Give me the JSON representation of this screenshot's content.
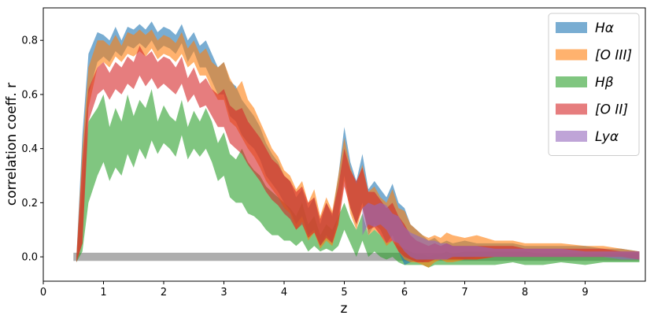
{
  "chart_data": {
    "type": "area",
    "xlabel": "z",
    "ylabel": "correlation coeff. r",
    "xlim": [
      0,
      10
    ],
    "ylim": [
      -0.09,
      0.92
    ],
    "xticks": [
      "0",
      "1",
      "2",
      "3",
      "4",
      "5",
      "6",
      "7",
      "8",
      "9"
    ],
    "yticks": [
      "0.0",
      "0.2",
      "0.4",
      "0.6",
      "0.8"
    ],
    "legend_position": "top-right",
    "grid": false,
    "series": [
      {
        "name": "Hα",
        "color": "#1f77b4",
        "x": [
          0.55,
          0.65,
          0.75,
          0.9,
          1.0,
          1.1,
          1.2,
          1.3,
          1.4,
          1.5,
          1.6,
          1.7,
          1.8,
          1.9,
          2.0,
          2.1,
          2.2,
          2.3,
          2.4,
          2.5,
          2.6,
          2.7,
          2.8,
          2.9,
          3.0,
          3.1,
          3.2,
          3.3,
          3.4,
          3.5,
          3.6,
          3.7,
          3.8,
          3.9,
          4.0,
          4.1,
          4.2,
          4.3,
          4.4,
          4.5,
          4.6,
          4.7,
          4.8,
          4.9,
          5.0,
          5.1,
          5.2,
          5.3,
          5.4,
          5.5,
          5.6,
          5.7,
          5.8,
          5.9,
          6.0,
          6.1,
          6.2,
          6.3,
          6.4,
          6.5,
          6.6,
          6.7,
          6.8,
          7.0,
          7.2,
          7.5,
          7.8,
          8.0,
          8.3,
          8.6,
          9.0,
          9.3,
          9.6,
          9.9
        ],
        "upper": [
          0.0,
          0.45,
          0.75,
          0.83,
          0.82,
          0.8,
          0.85,
          0.8,
          0.85,
          0.84,
          0.86,
          0.84,
          0.87,
          0.83,
          0.85,
          0.84,
          0.82,
          0.86,
          0.8,
          0.83,
          0.78,
          0.8,
          0.75,
          0.7,
          0.72,
          0.65,
          0.63,
          0.58,
          0.55,
          0.52,
          0.48,
          0.42,
          0.38,
          0.35,
          0.3,
          0.28,
          0.22,
          0.25,
          0.18,
          0.22,
          0.12,
          0.2,
          0.15,
          0.3,
          0.48,
          0.35,
          0.28,
          0.38,
          0.25,
          0.28,
          0.25,
          0.22,
          0.27,
          0.2,
          0.18,
          0.12,
          0.1,
          0.08,
          0.06,
          0.07,
          0.05,
          0.06,
          0.05,
          0.06,
          0.05,
          0.05,
          0.05,
          0.04,
          0.04,
          0.04,
          0.04,
          0.03,
          0.03,
          0.02
        ],
        "lower": [
          -0.02,
          0.05,
          0.6,
          0.72,
          0.74,
          0.72,
          0.76,
          0.74,
          0.78,
          0.77,
          0.79,
          0.77,
          0.8,
          0.76,
          0.78,
          0.77,
          0.75,
          0.79,
          0.72,
          0.76,
          0.7,
          0.7,
          0.65,
          0.6,
          0.6,
          0.52,
          0.5,
          0.45,
          0.42,
          0.4,
          0.36,
          0.3,
          0.27,
          0.24,
          0.2,
          0.17,
          0.12,
          0.15,
          0.08,
          0.1,
          0.04,
          0.08,
          0.05,
          0.15,
          0.3,
          0.18,
          0.12,
          0.2,
          0.08,
          0.12,
          0.1,
          0.05,
          0.08,
          0.02,
          -0.03,
          -0.02,
          -0.01,
          -0.02,
          -0.01,
          -0.01,
          0.0,
          -0.01,
          0.0,
          -0.01,
          0.0,
          0.0,
          0.0,
          0.0,
          0.0,
          0.0,
          0.0,
          0.0,
          0.0,
          -0.01
        ]
      },
      {
        "name": "[O III]",
        "color": "#ff7f0e",
        "x": [
          0.55,
          0.65,
          0.75,
          0.9,
          1.0,
          1.1,
          1.2,
          1.3,
          1.4,
          1.5,
          1.6,
          1.7,
          1.8,
          1.9,
          2.0,
          2.1,
          2.2,
          2.3,
          2.4,
          2.5,
          2.6,
          2.7,
          2.8,
          2.9,
          3.0,
          3.1,
          3.2,
          3.3,
          3.4,
          3.5,
          3.6,
          3.7,
          3.8,
          3.9,
          4.0,
          4.1,
          4.2,
          4.3,
          4.4,
          4.5,
          4.6,
          4.7,
          4.8,
          4.9,
          5.0,
          5.1,
          5.2,
          5.3,
          5.4,
          5.5,
          5.6,
          5.7,
          5.8,
          5.9,
          6.0,
          6.1,
          6.2,
          6.3,
          6.4,
          6.5,
          6.6,
          6.7,
          6.8,
          7.0,
          7.2,
          7.5,
          7.8,
          8.0,
          8.3,
          8.6,
          9.0,
          9.3,
          9.6,
          9.9
        ],
        "upper": [
          0.0,
          0.4,
          0.7,
          0.8,
          0.8,
          0.78,
          0.82,
          0.78,
          0.83,
          0.82,
          0.84,
          0.82,
          0.84,
          0.8,
          0.82,
          0.81,
          0.79,
          0.83,
          0.77,
          0.8,
          0.75,
          0.77,
          0.72,
          0.7,
          0.72,
          0.66,
          0.62,
          0.65,
          0.58,
          0.55,
          0.5,
          0.45,
          0.4,
          0.37,
          0.32,
          0.3,
          0.25,
          0.28,
          0.2,
          0.25,
          0.15,
          0.22,
          0.17,
          0.3,
          0.44,
          0.33,
          0.27,
          0.34,
          0.24,
          0.26,
          0.22,
          0.2,
          0.25,
          0.18,
          0.17,
          0.12,
          0.1,
          0.08,
          0.07,
          0.08,
          0.07,
          0.09,
          0.08,
          0.07,
          0.08,
          0.06,
          0.06,
          0.05,
          0.05,
          0.05,
          0.04,
          0.04,
          0.03,
          0.02
        ],
        "lower": [
          -0.02,
          0.05,
          0.55,
          0.7,
          0.72,
          0.7,
          0.74,
          0.72,
          0.75,
          0.74,
          0.76,
          0.74,
          0.77,
          0.73,
          0.75,
          0.74,
          0.72,
          0.75,
          0.7,
          0.72,
          0.67,
          0.67,
          0.62,
          0.58,
          0.58,
          0.5,
          0.48,
          0.44,
          0.4,
          0.37,
          0.33,
          0.28,
          0.25,
          0.22,
          0.18,
          0.16,
          0.1,
          0.13,
          0.06,
          0.09,
          0.03,
          0.06,
          0.04,
          0.12,
          0.28,
          0.16,
          0.1,
          0.18,
          0.08,
          0.1,
          0.08,
          0.04,
          0.06,
          0.02,
          -0.01,
          -0.02,
          -0.02,
          -0.03,
          -0.04,
          -0.02,
          -0.01,
          -0.02,
          -0.02,
          -0.01,
          -0.01,
          0.0,
          0.0,
          0.0,
          0.0,
          0.0,
          0.0,
          0.0,
          0.0,
          -0.01
        ]
      },
      {
        "name": "Hβ",
        "color": "#2ca02c",
        "x": [
          0.55,
          0.65,
          0.75,
          0.9,
          1.0,
          1.1,
          1.2,
          1.3,
          1.4,
          1.5,
          1.6,
          1.7,
          1.8,
          1.9,
          2.0,
          2.1,
          2.2,
          2.3,
          2.4,
          2.5,
          2.6,
          2.7,
          2.8,
          2.9,
          3.0,
          3.1,
          3.2,
          3.3,
          3.4,
          3.5,
          3.6,
          3.7,
          3.8,
          3.9,
          4.0,
          4.1,
          4.2,
          4.3,
          4.4,
          4.5,
          4.6,
          4.7,
          4.8,
          4.9,
          5.0,
          5.1,
          5.2,
          5.3,
          5.4,
          5.5,
          5.6,
          5.7,
          5.8,
          5.9,
          6.0,
          6.1,
          6.2,
          6.3,
          6.4,
          6.5,
          6.6,
          6.7,
          6.8,
          7.0,
          7.2,
          7.5,
          7.8,
          8.0,
          8.3,
          8.6,
          9.0,
          9.3,
          9.6,
          9.9
        ],
        "upper": [
          0.0,
          0.25,
          0.5,
          0.55,
          0.6,
          0.48,
          0.55,
          0.5,
          0.6,
          0.52,
          0.58,
          0.55,
          0.62,
          0.5,
          0.56,
          0.52,
          0.5,
          0.58,
          0.48,
          0.54,
          0.5,
          0.55,
          0.5,
          0.42,
          0.46,
          0.38,
          0.36,
          0.4,
          0.35,
          0.32,
          0.3,
          0.26,
          0.24,
          0.22,
          0.2,
          0.18,
          0.15,
          0.2,
          0.12,
          0.15,
          0.08,
          0.12,
          0.1,
          0.15,
          0.2,
          0.14,
          0.1,
          0.16,
          0.08,
          0.1,
          0.08,
          0.05,
          0.06,
          0.04,
          0.03,
          0.02,
          0.01,
          0.01,
          0.0,
          0.01,
          0.01,
          0.02,
          0.01,
          0.02,
          0.02,
          0.02,
          0.02,
          0.02,
          0.01,
          0.01,
          0.01,
          0.01,
          0.01,
          0.01
        ],
        "lower": [
          -0.02,
          0.02,
          0.2,
          0.3,
          0.35,
          0.28,
          0.33,
          0.3,
          0.38,
          0.33,
          0.4,
          0.36,
          0.43,
          0.38,
          0.42,
          0.4,
          0.37,
          0.45,
          0.36,
          0.4,
          0.37,
          0.4,
          0.35,
          0.28,
          0.3,
          0.22,
          0.2,
          0.2,
          0.16,
          0.15,
          0.13,
          0.1,
          0.08,
          0.08,
          0.06,
          0.06,
          0.04,
          0.06,
          0.02,
          0.04,
          0.02,
          0.03,
          0.02,
          0.04,
          0.1,
          0.05,
          0.0,
          0.06,
          0.0,
          0.02,
          0.0,
          -0.01,
          0.0,
          -0.02,
          -0.03,
          -0.03,
          -0.03,
          -0.03,
          -0.04,
          -0.03,
          -0.03,
          -0.03,
          -0.03,
          -0.03,
          -0.03,
          -0.03,
          -0.02,
          -0.03,
          -0.03,
          -0.02,
          -0.03,
          -0.02,
          -0.02,
          -0.02
        ]
      },
      {
        "name": "[O II]",
        "color": "#d62728",
        "x": [
          0.55,
          0.65,
          0.75,
          0.9,
          1.0,
          1.1,
          1.2,
          1.3,
          1.4,
          1.5,
          1.6,
          1.7,
          1.8,
          1.9,
          2.0,
          2.1,
          2.2,
          2.3,
          2.4,
          2.5,
          2.6,
          2.7,
          2.8,
          2.9,
          3.0,
          3.1,
          3.2,
          3.3,
          3.4,
          3.5,
          3.6,
          3.7,
          3.8,
          3.9,
          4.0,
          4.1,
          4.2,
          4.3,
          4.4,
          4.5,
          4.6,
          4.7,
          4.8,
          4.9,
          5.0,
          5.1,
          5.2,
          5.3,
          5.4,
          5.5,
          5.6,
          5.7,
          5.8,
          5.9,
          6.0,
          6.1,
          6.2,
          6.3,
          6.4,
          6.5,
          6.6,
          6.7,
          6.8,
          7.0,
          7.2,
          7.5,
          7.8,
          8.0,
          8.3,
          8.6,
          9.0,
          9.3,
          9.6,
          9.9
        ],
        "upper": [
          0.0,
          0.35,
          0.62,
          0.7,
          0.72,
          0.68,
          0.72,
          0.7,
          0.74,
          0.72,
          0.78,
          0.74,
          0.76,
          0.72,
          0.74,
          0.73,
          0.7,
          0.74,
          0.66,
          0.7,
          0.64,
          0.66,
          0.62,
          0.6,
          0.62,
          0.56,
          0.54,
          0.55,
          0.5,
          0.47,
          0.44,
          0.4,
          0.36,
          0.34,
          0.3,
          0.28,
          0.24,
          0.26,
          0.2,
          0.22,
          0.14,
          0.2,
          0.16,
          0.26,
          0.4,
          0.32,
          0.28,
          0.33,
          0.24,
          0.24,
          0.21,
          0.18,
          0.2,
          0.15,
          0.12,
          0.08,
          0.06,
          0.05,
          0.04,
          0.05,
          0.04,
          0.05,
          0.04,
          0.04,
          0.04,
          0.04,
          0.04,
          0.03,
          0.03,
          0.03,
          0.03,
          0.03,
          0.02,
          0.02
        ],
        "lower": [
          -0.02,
          0.05,
          0.5,
          0.6,
          0.62,
          0.58,
          0.62,
          0.6,
          0.64,
          0.62,
          0.67,
          0.63,
          0.66,
          0.62,
          0.64,
          0.62,
          0.6,
          0.64,
          0.57,
          0.6,
          0.55,
          0.56,
          0.52,
          0.48,
          0.48,
          0.42,
          0.4,
          0.38,
          0.34,
          0.31,
          0.28,
          0.24,
          0.21,
          0.19,
          0.16,
          0.14,
          0.1,
          0.12,
          0.07,
          0.09,
          0.04,
          0.07,
          0.05,
          0.12,
          0.26,
          0.18,
          0.12,
          0.18,
          0.1,
          0.11,
          0.08,
          0.05,
          0.06,
          0.02,
          0.0,
          -0.01,
          -0.02,
          -0.02,
          -0.02,
          -0.01,
          -0.01,
          -0.01,
          -0.01,
          -0.01,
          -0.01,
          0.0,
          0.0,
          0.0,
          0.0,
          0.0,
          0.0,
          0.0,
          0.0,
          -0.01
        ]
      },
      {
        "name": "Lyα",
        "color": "#9467bd",
        "x": [
          5.3,
          5.4,
          5.5,
          5.6,
          5.7,
          5.8,
          5.9,
          6.0,
          6.1,
          6.2,
          6.3,
          6.4,
          6.5,
          6.6,
          6.7,
          6.8,
          7.0,
          7.2,
          7.5,
          7.8,
          8.0,
          8.3,
          8.6,
          9.0,
          9.3,
          9.6,
          9.9
        ],
        "upper": [
          0.18,
          0.2,
          0.19,
          0.2,
          0.19,
          0.16,
          0.15,
          0.11,
          0.09,
          0.08,
          0.07,
          0.06,
          0.06,
          0.05,
          0.05,
          0.04,
          0.04,
          0.04,
          0.03,
          0.03,
          0.03,
          0.03,
          0.03,
          0.02,
          0.02,
          0.02,
          0.02
        ],
        "lower": [
          0.08,
          0.12,
          0.11,
          0.12,
          0.1,
          0.06,
          0.05,
          0.02,
          0.0,
          -0.01,
          -0.01,
          -0.01,
          -0.01,
          -0.01,
          -0.01,
          0.0,
          0.0,
          0.0,
          0.0,
          0.0,
          0.0,
          0.0,
          0.0,
          0.0,
          0.0,
          -0.01,
          -0.01
        ]
      },
      {
        "color": "#a0a0a0",
        "x": [
          0.5,
          9.9
        ],
        "upper": [
          0.015,
          0.015
        ],
        "lower": [
          -0.015,
          -0.015
        ]
      }
    ]
  },
  "legend": {
    "items": [
      {
        "label": "Hα",
        "color": "#1f77b4"
      },
      {
        "label": "[O III]",
        "color": "#ff7f0e"
      },
      {
        "label": "Hβ",
        "color": "#2ca02c"
      },
      {
        "label": "[O II]",
        "color": "#d62728"
      },
      {
        "label": "Lyα",
        "color": "#9467bd"
      }
    ]
  }
}
